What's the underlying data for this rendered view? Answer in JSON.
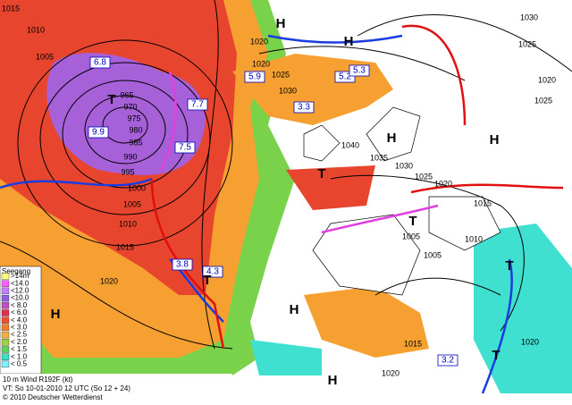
{
  "legend": {
    "title": "Seegang",
    "items": [
      ">14m",
      "<14.0",
      "<12.0",
      "<10.0",
      "< 8.0",
      "< 6.0",
      "< 4.0",
      "< 3.0",
      "< 2.5",
      "< 2.0",
      "< 1.5",
      "< 1.0",
      "< 0.5"
    ]
  },
  "footer": [
    "10 m Wind R192F (kt)",
    "VT: So 10-01-2010 12 UTC (So 12 +  24)",
    "© 2010 Deutscher Wetterdienst"
  ],
  "isobars": [
    "1015",
    "1010",
    "1005",
    "965",
    "970",
    "975",
    "980",
    "985",
    "990",
    "995",
    "1000",
    "1005",
    "1010",
    "1015",
    "1020",
    "1020",
    "1025",
    "1030",
    "1030",
    "1025",
    "1020",
    "1025",
    "1020",
    "1040",
    "1035",
    "1030",
    "1025",
    "1020",
    "1015",
    "1005",
    "1010",
    "1005",
    "1015",
    "1020",
    "1020"
  ],
  "wave_boxes": [
    "6.8",
    "7.7",
    "5.9",
    "5.2",
    "5.3",
    "3.3",
    "9.9",
    "7.5",
    "3.8",
    "4.3",
    "3.2"
  ],
  "centers": [
    "H",
    "H",
    "H",
    "H",
    "H",
    "H",
    "H",
    "T",
    "T",
    "T",
    "T",
    "T",
    "T"
  ]
}
